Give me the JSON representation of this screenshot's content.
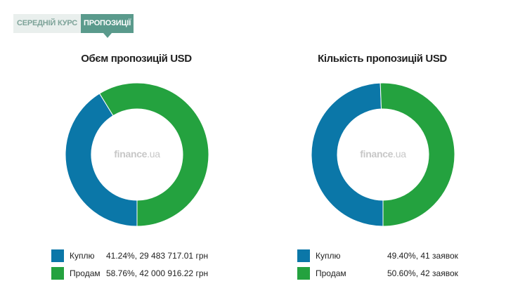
{
  "tabs": [
    {
      "label": "СЕРЕДНІЙ КУРС",
      "active": false
    },
    {
      "label": "ПРОПОЗИЦІЇ",
      "active": true
    }
  ],
  "watermark": {
    "brand": "finance",
    "tld": ".ua"
  },
  "colors": {
    "buy": "#0b77a8",
    "sell": "#24a23f",
    "tab_active": "#5a9a8c",
    "tab_inactive_bg": "#e9efed",
    "tab_inactive_text": "#7ea399",
    "watermark": "#c7c7c7"
  },
  "chart_data": [
    {
      "type": "pie",
      "title": "Обєм пропозицій USD",
      "series": [
        {
          "name": "Куплю",
          "value": 41.24,
          "value_text": "41.24%, 29 483 717.01 грн",
          "color": "#0b77a8"
        },
        {
          "name": "Продам",
          "value": 58.76,
          "value_text": "58.76%, 42 000 916.22 грн",
          "color": "#24a23f"
        }
      ],
      "legend_position": "bottom"
    },
    {
      "type": "pie",
      "title": "Кількість пропозицій USD",
      "series": [
        {
          "name": "Куплю",
          "value": 49.4,
          "value_text": "49.40%, 41 заявок",
          "color": "#0b77a8"
        },
        {
          "name": "Продам",
          "value": 50.6,
          "value_text": "50.60%, 42 заявок",
          "color": "#24a23f"
        }
      ],
      "legend_position": "bottom"
    }
  ]
}
